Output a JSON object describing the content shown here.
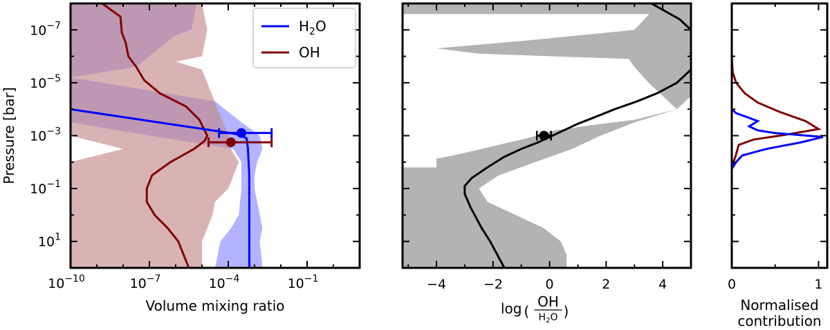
{
  "colors": {
    "h2o": "#0000ff",
    "oh": "#800000",
    "h2o_band": "#a0a0ff",
    "oh_band": "#c48a8a",
    "ratio_band": "#b3b3b3",
    "ratio_line": "#000000"
  },
  "chart_data": [
    {
      "type": "line",
      "title": "",
      "xlabel": "Volume mixing ratio",
      "ylabel": "Pressure [bar]",
      "xscale": "log",
      "yscale": "log",
      "xlim_log10": [
        -10,
        1
      ],
      "ylim_log10_pressure": [
        -8,
        2
      ],
      "xticks": [
        {
          "value": -10,
          "label": "10",
          "exp": "−10"
        },
        {
          "value": -7,
          "label": "10",
          "exp": "−7"
        },
        {
          "value": -4,
          "label": "10",
          "exp": "−4"
        },
        {
          "value": -1,
          "label": "10",
          "exp": "−1"
        }
      ],
      "yticks": [
        {
          "value": -7,
          "label": "10",
          "exp": "−7"
        },
        {
          "value": -5,
          "label": "10",
          "exp": "−5"
        },
        {
          "value": -3,
          "label": "10",
          "exp": "−3"
        },
        {
          "value": -1,
          "label": "10",
          "exp": "−1"
        },
        {
          "value": 1,
          "label": "10",
          "exp": "1"
        }
      ],
      "legend": {
        "placement": "top-right",
        "entries": [
          {
            "name": "H",
            "sub": "2",
            "tail": "O",
            "series": "h2o"
          },
          {
            "name": "OH",
            "sub": "",
            "tail": "",
            "series": "oh"
          }
        ]
      },
      "series": [
        {
          "name": "H2O",
          "key": "h2o",
          "log_vmr": [
            -10,
            -3.6,
            -3.3,
            -3.25,
            -3.2,
            -3.2,
            -3.2
          ],
          "log_p": [
            -4.0,
            -3.05,
            -2.9,
            -2.5,
            -1.5,
            0.5,
            2.0
          ],
          "band": {
            "log_p": [
              -8,
              -7,
              -6.8,
              -5.6,
              -5.2,
              -4.3,
              -3.5,
              -3.0,
              -2.5,
              -2.0,
              -1.5,
              -1.0,
              0.0,
              0.5,
              1.0,
              2.0
            ],
            "low": [
              -10,
              -10,
              -10,
              -10,
              -10,
              -10,
              -10,
              -7.0,
              -3.8,
              -3.5,
              -3.5,
              -3.5,
              -3.6,
              -3.9,
              -4.3,
              -4.5
            ],
            "high": [
              -5.2,
              -5.4,
              -6.0,
              -7.5,
              -10,
              -4.5,
              -3.5,
              -2.8,
              -2.7,
              -2.9,
              -3.0,
              -3.0,
              -2.8,
              -2.7,
              -2.8,
              -2.7
            ]
          },
          "point": {
            "log_vmr": -3.5,
            "log_p": -3.1,
            "xerr_low": -4.35,
            "xerr_high": -2.35
          }
        },
        {
          "name": "OH",
          "key": "oh",
          "log_vmr": [
            -8.8,
            -8.1,
            -8.05,
            -7.9,
            -7.8,
            -7.5,
            -7.2,
            -6.6,
            -5.6,
            -5.1,
            -4.9,
            -4.8,
            -4.9,
            -5.3,
            -6.2,
            -6.9,
            -7.1,
            -7.1,
            -6.8,
            -6.3,
            -5.9,
            -5.5
          ],
          "log_p": [
            -8.0,
            -7.5,
            -6.9,
            -6.5,
            -6.0,
            -5.6,
            -5.1,
            -4.6,
            -4.1,
            -3.6,
            -3.2,
            -3.0,
            -2.8,
            -2.5,
            -2.0,
            -1.5,
            -1.0,
            -0.5,
            0.0,
            0.5,
            1.0,
            2.0
          ],
          "band": {
            "log_p": [
              -8.0,
              -7.0,
              -6.0,
              -5.8,
              -5.5,
              -4.5,
              -4.0,
              -3.5,
              -3.0,
              -2.5,
              -2.0,
              -1.5,
              -1.0,
              -0.5,
              0.0,
              0.5,
              1.0,
              2.0
            ],
            "low": [
              -10,
              -10,
              -10,
              -10,
              -10,
              -10,
              -10,
              -10,
              -10,
              -8.0,
              -10,
              -10,
              -10,
              -10,
              -10,
              -10,
              -10,
              -10
            ],
            "high": [
              -5.0,
              -4.8,
              -5.0,
              -6.0,
              -5.0,
              -4.6,
              -4.4,
              -4.2,
              -4.0,
              -3.9,
              -3.6,
              -3.8,
              -4.0,
              -4.5,
              -4.6,
              -4.8,
              -5.0,
              -5.0
            ]
          },
          "point": {
            "log_vmr": -3.9,
            "log_p": -2.75,
            "xerr_low": -4.75,
            "xerr_high": -2.35
          }
        }
      ]
    },
    {
      "type": "line",
      "title": "",
      "xlabel_prefix": "log",
      "xlabel_num": "OH",
      "xlabel_den_main": "H",
      "xlabel_den_sub": "2",
      "xlabel_den_tail": "O",
      "xlim": [
        -5.2,
        5.0
      ],
      "xticks": [
        {
          "value": -4,
          "label": "−4"
        },
        {
          "value": -2,
          "label": "−2"
        },
        {
          "value": 0,
          "label": "0"
        },
        {
          "value": 2,
          "label": "2"
        },
        {
          "value": 4,
          "label": "4"
        }
      ],
      "series": [
        {
          "name": "log(OH/H2O)",
          "x": [
            5.0,
            4.5,
            3.8,
            3.1,
            2.3,
            1.6,
            1.0,
            0.5,
            0.1,
            -0.4,
            -1.0,
            -1.6,
            -2.2,
            -2.75,
            -3.0,
            -3.0,
            -2.8,
            -2.4,
            -2.1,
            -1.8,
            -1.6
          ],
          "log_p": [
            -5.5,
            -5.0,
            -4.6,
            -4.3,
            -4.0,
            -3.7,
            -3.45,
            -3.2,
            -3.0,
            -2.75,
            -2.5,
            -2.2,
            -1.8,
            -1.4,
            -1.1,
            -0.8,
            -0.3,
            0.5,
            1.0,
            1.6,
            2.0
          ],
          "band": {
            "log_p": [
              -8.0,
              -7.8,
              -7.0,
              -6.5,
              -6.0,
              -5.6,
              -5.3,
              -5.0,
              -4.5,
              -4.0,
              -3.5,
              -3.0,
              -2.5,
              -2.0,
              -1.5,
              -1.0,
              -0.5,
              0.0,
              0.5,
              1.0,
              1.5,
              2.0
            ],
            "low": [
              -5.2,
              -5.2,
              -5.2,
              -5.2,
              -5.2,
              -5.2,
              -5.2,
              -5.2,
              -5.2,
              -5.2,
              -5.2,
              -5.2,
              -5.2,
              -5.2,
              -5.2,
              -5.2,
              -5.2,
              -5.2,
              -5.2,
              -5.2,
              -5.2,
              -5.2
            ],
            "high": [
              5.0,
              5.0,
              5.0,
              5.0,
              5.0,
              5.0,
              5.0,
              5.0,
              5.0,
              4.5,
              3.0,
              1.8,
              0.8,
              -0.5,
              -1.8,
              -2.5,
              -2.2,
              -1.2,
              -0.2,
              0.4,
              0.6,
              0.6
            ],
            "gap_low": [
              null,
              3.7,
              3.0,
              -0.8,
              -4.0,
              -2.5,
              2.8,
              3.0,
              3.5,
              4.0,
              4.5,
              null,
              null,
              null,
              null,
              null,
              null,
              null,
              null,
              null,
              null,
              null
            ]
          },
          "point": {
            "x": -0.2,
            "log_p": -3.0,
            "xerr_low": -0.45,
            "xerr_high": 0.05
          }
        }
      ]
    },
    {
      "type": "line",
      "title": "",
      "xlabel_line1": "Normalised",
      "xlabel_line2": "contribution",
      "xlim": [
        0,
        1.1
      ],
      "xticks": [
        {
          "value": 0,
          "label": "0"
        },
        {
          "value": 1,
          "label": "1"
        }
      ],
      "series": [
        {
          "name": "OH",
          "key": "oh",
          "x": [
            0,
            0.0,
            0.01,
            0.05,
            0.15,
            0.3,
            0.55,
            0.85,
            1.0,
            0.65,
            0.25,
            0.08,
            0.05,
            0.02,
            0.0,
            0.0
          ],
          "log_p": [
            -6.6,
            -6.0,
            -5.4,
            -5.0,
            -4.6,
            -4.25,
            -3.9,
            -3.55,
            -3.25,
            -3.05,
            -2.85,
            -2.65,
            -2.3,
            -2.0,
            -1.8,
            -1.6
          ]
        },
        {
          "name": "H2O",
          "key": "h2o",
          "x": [
            0.0,
            0.0,
            0.05,
            0.3,
            0.2,
            0.3,
            0.5,
            1.05,
            0.8,
            0.4,
            0.12,
            0.05,
            0.0,
            0.0
          ],
          "log_p": [
            -4.2,
            -4.0,
            -3.85,
            -3.55,
            -3.35,
            -3.2,
            -3.1,
            -2.95,
            -2.75,
            -2.5,
            -2.25,
            -2.0,
            -1.75,
            -1.6
          ]
        }
      ]
    }
  ]
}
